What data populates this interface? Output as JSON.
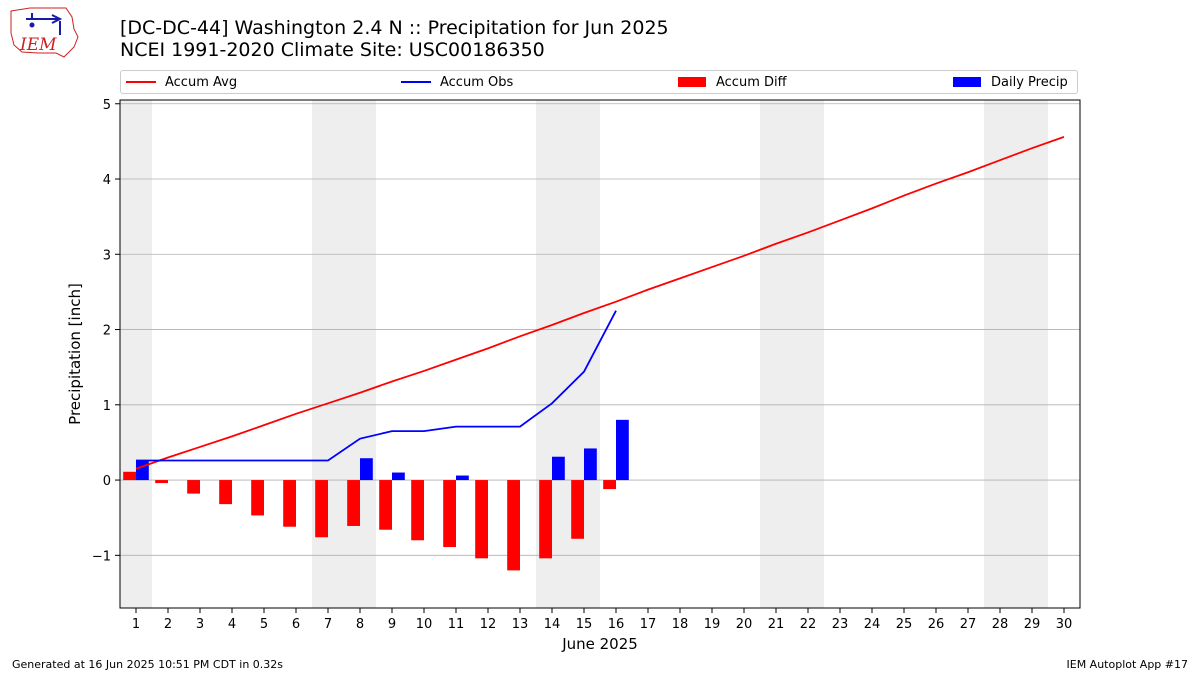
{
  "header": {
    "title_line1": "[DC-DC-44] Washington 2.4 N :: Precipitation for Jun 2025",
    "title_line2": "NCEI 1991-2020 Climate Site: USC00186350",
    "logo_text": "IEM"
  },
  "footer": {
    "generated": "Generated at 16 Jun 2025 10:51 PM CDT in 0.32s",
    "app": "IEM Autoplot App #17"
  },
  "chart_data": {
    "type": "bar",
    "xlabel": "June 2025",
    "ylabel": "Precipitation [inch]",
    "xlim": [
      0.5,
      30.5
    ],
    "ylim": [
      -1.7,
      5.05
    ],
    "yticks": [
      -1,
      0,
      1,
      2,
      3,
      4,
      5
    ],
    "ytick_labels": [
      "−1",
      "0",
      "1",
      "2",
      "3",
      "4",
      "5"
    ],
    "days": [
      1,
      2,
      3,
      4,
      5,
      6,
      7,
      8,
      9,
      10,
      11,
      12,
      13,
      14,
      15,
      16,
      17,
      18,
      19,
      20,
      21,
      22,
      23,
      24,
      25,
      26,
      27,
      28,
      29,
      30
    ],
    "weekend_shading": [
      [
        0.5,
        1.5
      ],
      [
        6.5,
        8.5
      ],
      [
        13.5,
        15.5
      ],
      [
        20.5,
        22.5
      ],
      [
        27.5,
        29.5
      ]
    ],
    "grid": "horizontal",
    "legend_position": "top",
    "series": [
      {
        "name": "Accum Avg",
        "kind": "line",
        "color": "#ff0000",
        "x": [
          1,
          2,
          3,
          4,
          5,
          6,
          7,
          8,
          9,
          10,
          11,
          12,
          13,
          14,
          15,
          16,
          17,
          18,
          19,
          20,
          21,
          22,
          23,
          24,
          25,
          26,
          27,
          28,
          29,
          30
        ],
        "values": [
          0.15,
          0.3,
          0.44,
          0.58,
          0.73,
          0.88,
          1.02,
          1.16,
          1.31,
          1.45,
          1.6,
          1.75,
          1.91,
          2.06,
          2.22,
          2.37,
          2.53,
          2.68,
          2.83,
          2.98,
          3.14,
          3.29,
          3.45,
          3.61,
          3.78,
          3.94,
          4.09,
          4.25,
          4.41,
          4.56
        ]
      },
      {
        "name": "Accum Obs",
        "kind": "line",
        "color": "#0000ff",
        "x": [
          1,
          2,
          3,
          4,
          5,
          6,
          7,
          8,
          9,
          10,
          11,
          12,
          13,
          14,
          15,
          16
        ],
        "values": [
          0.26,
          0.26,
          0.26,
          0.26,
          0.26,
          0.26,
          0.26,
          0.55,
          0.65,
          0.65,
          0.71,
          0.71,
          0.71,
          1.02,
          1.44,
          2.25
        ]
      },
      {
        "name": "Accum Diff",
        "kind": "bar",
        "color": "#ff0000",
        "x": [
          1,
          2,
          3,
          4,
          5,
          6,
          7,
          8,
          9,
          10,
          11,
          12,
          13,
          14,
          15,
          16
        ],
        "values": [
          0.11,
          -0.04,
          -0.18,
          -0.32,
          -0.47,
          -0.62,
          -0.76,
          -0.61,
          -0.66,
          -0.8,
          -0.89,
          -1.04,
          -1.2,
          -1.04,
          -0.78,
          -0.12
        ]
      },
      {
        "name": "Daily Precip",
        "kind": "bar",
        "color": "#0000ff",
        "x": [
          1,
          2,
          3,
          4,
          5,
          6,
          7,
          8,
          9,
          10,
          11,
          12,
          13,
          14,
          15,
          16
        ],
        "values": [
          0.26,
          0,
          0,
          0,
          0,
          0,
          0,
          0.29,
          0.1,
          0,
          0.06,
          0,
          0,
          0.31,
          0.42,
          0.8
        ]
      }
    ]
  }
}
